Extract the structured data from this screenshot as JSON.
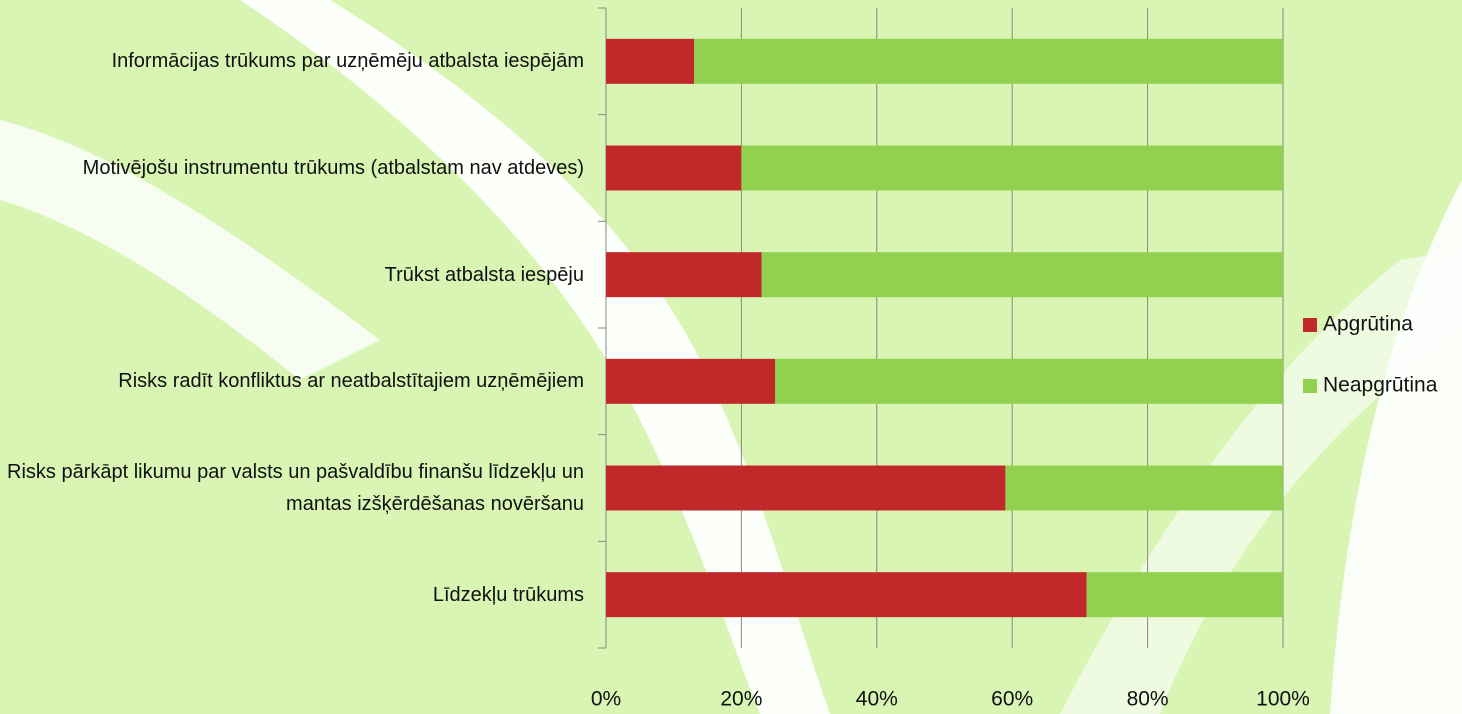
{
  "chart_data": {
    "type": "stacked_bar_horizontal",
    "categories": [
      "Informācijas trūkums par uzņēmēju atbalsta iespējām",
      "Motivējošu instrumentu trūkums (atbalstam nav atdeves)",
      "Trūkst atbalsta iespēju",
      "Risks radīt konfliktus ar neatbalstītajiem uzņēmējiem",
      "Risks pārkāpt likumu par valsts un pašvaldību finanšu līdzekļu un mantas izšķērdēšanas novēršanu",
      "Līdzekļu trūkums"
    ],
    "series": [
      {
        "name": "Apgrūtina",
        "color": "#c0282a",
        "values": [
          13,
          20,
          23,
          25,
          59,
          71
        ]
      },
      {
        "name": "Neapgrūtina",
        "color": "#92d050",
        "values": [
          87,
          80,
          77,
          75,
          41,
          29
        ]
      }
    ],
    "xlim": [
      0,
      100
    ],
    "xticks": [
      {
        "value": 0,
        "label": "0%"
      },
      {
        "value": 20,
        "label": "20%"
      },
      {
        "value": 40,
        "label": "40%"
      },
      {
        "value": 60,
        "label": "60%"
      },
      {
        "value": 80,
        "label": "80%"
      },
      {
        "value": 100,
        "label": "100%"
      }
    ],
    "grid": true,
    "legend": "right"
  }
}
